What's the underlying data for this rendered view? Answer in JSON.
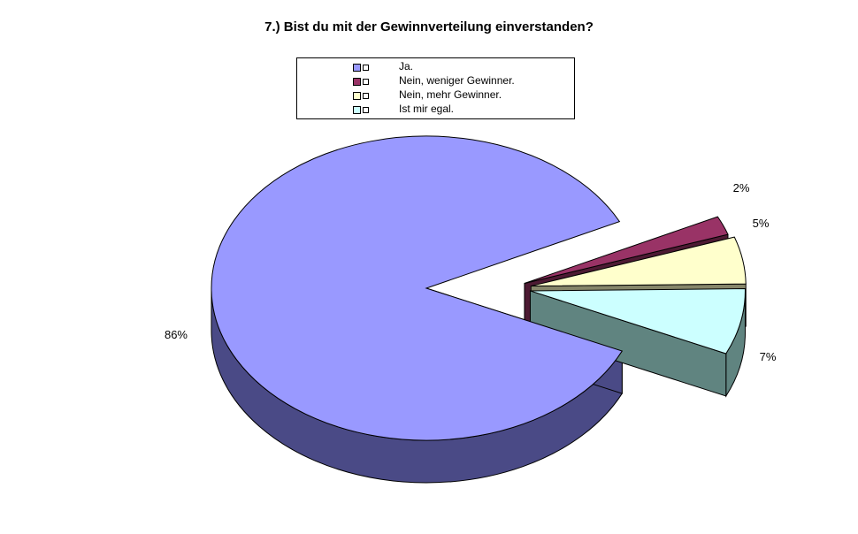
{
  "chart_data": {
    "type": "pie",
    "title": "7.) Bist du mit der Gewinnverteilung einverstanden?",
    "slices": [
      {
        "label": "Ja.",
        "value": 86,
        "pct_label": "86%",
        "color": "#9999FF",
        "side_color": "#4A4A86"
      },
      {
        "label": "Nein, weniger Gewinner.",
        "value": 2,
        "pct_label": "2%",
        "color": "#993366",
        "side_color": "#4D1A33"
      },
      {
        "label": "Nein, mehr Gewinner.",
        "value": 5,
        "pct_label": "5%",
        "color": "#FFFFCC",
        "side_color": "#86866A"
      },
      {
        "label": "Ist mir egal.",
        "value": 7,
        "pct_label": "7%",
        "color": "#CCFFFF",
        "side_color": "#608480"
      }
    ],
    "legend_position": "top",
    "three_d": true,
    "exploded": [
      "Nein, weniger Gewinner.",
      "Nein, mehr Gewinner.",
      "Ist mir egal."
    ]
  }
}
